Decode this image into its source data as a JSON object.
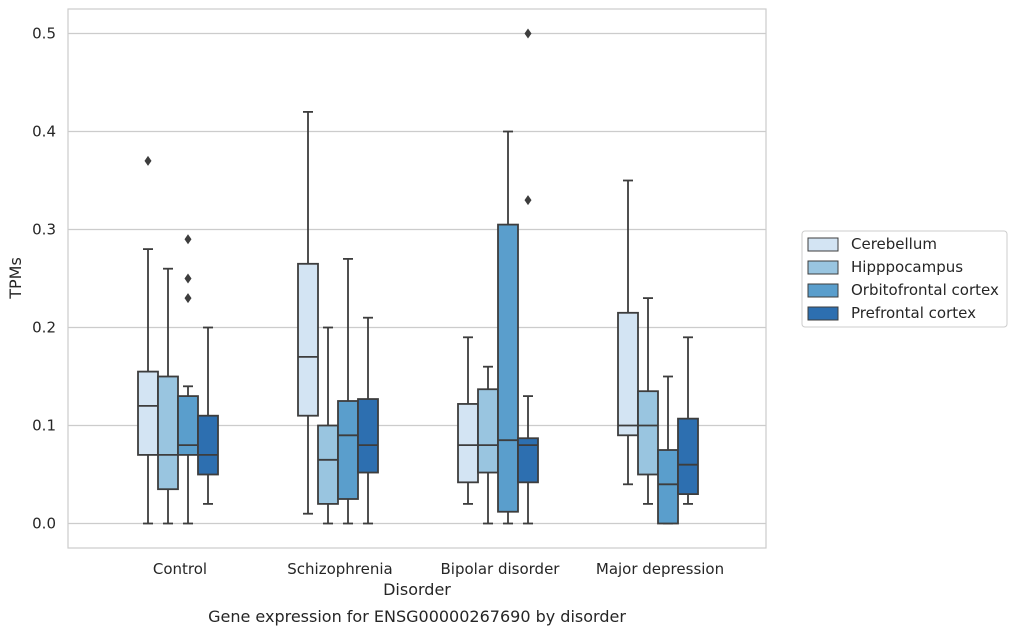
{
  "chart_data": {
    "type": "box",
    "title": "Gene expression for ENSG00000267690 by disorder",
    "xlabel": "Disorder",
    "ylabel": "TPMs",
    "ylim": [
      -0.025,
      0.525
    ],
    "yticks": [
      0.0,
      0.1,
      0.2,
      0.3,
      0.4,
      0.5
    ],
    "yticks_labels": [
      "0.0",
      "0.1",
      "0.2",
      "0.3",
      "0.4",
      "0.5"
    ],
    "grid": "horizontal",
    "legend_position": "right",
    "categories": [
      "Control",
      "Schizophrenia",
      "Bipolar disorder",
      "Major depression"
    ],
    "series": [
      {
        "name": "Cerebellum",
        "color": "#d3e4f3",
        "boxes": [
          {
            "whislo": 0.0,
            "q1": 0.07,
            "med": 0.12,
            "q3": 0.155,
            "whishi": 0.28,
            "fliers": [
              0.37
            ]
          },
          {
            "whislo": 0.01,
            "q1": 0.11,
            "med": 0.17,
            "q3": 0.265,
            "whishi": 0.42,
            "fliers": []
          },
          {
            "whislo": 0.02,
            "q1": 0.042,
            "med": 0.08,
            "q3": 0.122,
            "whishi": 0.19,
            "fliers": []
          },
          {
            "whislo": 0.04,
            "q1": 0.09,
            "med": 0.1,
            "q3": 0.215,
            "whishi": 0.35,
            "fliers": []
          }
        ]
      },
      {
        "name": "Hipppocampus",
        "color": "#99c5e0",
        "boxes": [
          {
            "whislo": 0.0,
            "q1": 0.035,
            "med": 0.07,
            "q3": 0.15,
            "whishi": 0.26,
            "fliers": []
          },
          {
            "whislo": 0.0,
            "q1": 0.02,
            "med": 0.065,
            "q3": 0.1,
            "whishi": 0.2,
            "fliers": []
          },
          {
            "whislo": 0.0,
            "q1": 0.052,
            "med": 0.08,
            "q3": 0.137,
            "whishi": 0.16,
            "fliers": []
          },
          {
            "whislo": 0.02,
            "q1": 0.05,
            "med": 0.1,
            "q3": 0.135,
            "whishi": 0.23,
            "fliers": []
          }
        ]
      },
      {
        "name": "Orbitofrontal cortex",
        "color": "#5a9ecc",
        "boxes": [
          {
            "whislo": 0.0,
            "q1": 0.07,
            "med": 0.08,
            "q3": 0.13,
            "whishi": 0.14,
            "fliers": [
              0.29,
              0.25,
              0.23
            ]
          },
          {
            "whislo": 0.0,
            "q1": 0.025,
            "med": 0.09,
            "q3": 0.125,
            "whishi": 0.27,
            "fliers": []
          },
          {
            "whislo": 0.0,
            "q1": 0.012,
            "med": 0.085,
            "q3": 0.305,
            "whishi": 0.4,
            "fliers": []
          },
          {
            "whislo": 0.0,
            "q1": 0.0,
            "med": 0.04,
            "q3": 0.075,
            "whishi": 0.15,
            "fliers": []
          }
        ]
      },
      {
        "name": "Prefrontal cortex",
        "color": "#2d6fb0",
        "boxes": [
          {
            "whislo": 0.02,
            "q1": 0.05,
            "med": 0.07,
            "q3": 0.11,
            "whishi": 0.2,
            "fliers": []
          },
          {
            "whislo": 0.0,
            "q1": 0.052,
            "med": 0.08,
            "q3": 0.127,
            "whishi": 0.21,
            "fliers": []
          },
          {
            "whislo": 0.0,
            "q1": 0.042,
            "med": 0.08,
            "q3": 0.087,
            "whishi": 0.13,
            "fliers": [
              0.5,
              0.33
            ]
          },
          {
            "whislo": 0.02,
            "q1": 0.03,
            "med": 0.06,
            "q3": 0.107,
            "whishi": 0.19,
            "fliers": []
          }
        ]
      }
    ]
  },
  "colors": {
    "grid": "#cccccc",
    "frame": "#cccccc",
    "box_line": "#3d3d3d",
    "text": "#262626"
  }
}
